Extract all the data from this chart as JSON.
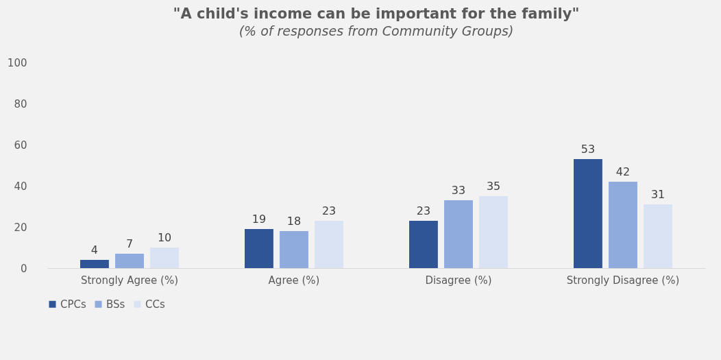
{
  "chart_data": {
    "type": "bar",
    "title": "\"A child's income can be important for the family\"",
    "subtitle": "(% of responses from Community Groups)",
    "categories": [
      "Strongly Agree (%)",
      "Agree (%)",
      "Disagree (%)",
      "Strongly Disagree (%)"
    ],
    "series": [
      {
        "name": "CPCs",
        "color": "#2f5597",
        "values": [
          4,
          19,
          23,
          53
        ]
      },
      {
        "name": "BSs",
        "color": "#8faadc",
        "values": [
          7,
          18,
          33,
          42
        ]
      },
      {
        "name": "CCs",
        "color": "#dae3f3",
        "values": [
          10,
          23,
          35,
          31
        ]
      }
    ],
    "ylim": [
      0,
      100
    ],
    "yticks": [
      0,
      20,
      40,
      60,
      80,
      100
    ],
    "data_labels": true,
    "legend": "bottom",
    "grid": false
  }
}
